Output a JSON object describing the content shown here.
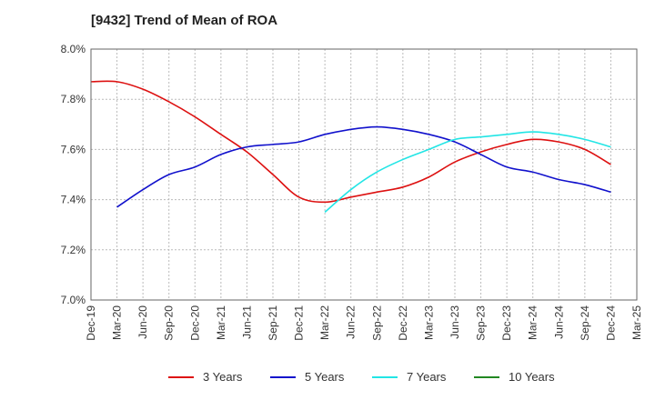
{
  "chart_data": {
    "type": "line",
    "title": "[9432]  Trend of Mean of ROA",
    "xlabel": "",
    "ylabel": "",
    "ylim": [
      7.0,
      8.0
    ],
    "yticks": [
      "7.0%",
      "7.2%",
      "7.4%",
      "7.6%",
      "7.8%",
      "8.0%"
    ],
    "yvalues": [
      7.0,
      7.2,
      7.4,
      7.6,
      7.8,
      8.0
    ],
    "x_labels": [
      "Dec-19",
      "Mar-20",
      "Jun-20",
      "Sep-20",
      "Dec-20",
      "Mar-21",
      "Jun-21",
      "Sep-21",
      "Dec-21",
      "Mar-22",
      "Jun-22",
      "Sep-22",
      "Dec-22",
      "Mar-23",
      "Jun-23",
      "Sep-23",
      "Dec-23",
      "Mar-24",
      "Jun-24",
      "Sep-24",
      "Dec-24",
      "Mar-25"
    ],
    "grid": true,
    "legend_position": "bottom",
    "series": [
      {
        "name": "3 Years",
        "color": "#dd1111",
        "values": [
          7.87,
          7.87,
          7.84,
          7.79,
          7.73,
          7.66,
          7.59,
          7.5,
          7.41,
          7.39,
          7.41,
          7.43,
          7.45,
          7.49,
          7.55,
          7.59,
          7.62,
          7.64,
          7.63,
          7.6,
          7.54,
          null
        ]
      },
      {
        "name": "5 Years",
        "color": "#1111cc",
        "values": [
          null,
          7.37,
          7.44,
          7.5,
          7.53,
          7.58,
          7.61,
          7.62,
          7.63,
          7.66,
          7.68,
          7.69,
          7.68,
          7.66,
          7.63,
          7.58,
          7.53,
          7.51,
          7.48,
          7.46,
          7.43,
          null
        ]
      },
      {
        "name": "7 Years",
        "color": "#22e5e5",
        "values": [
          null,
          null,
          null,
          null,
          null,
          null,
          null,
          null,
          null,
          7.35,
          7.44,
          7.51,
          7.56,
          7.6,
          7.64,
          7.65,
          7.66,
          7.67,
          7.66,
          7.64,
          7.61,
          null
        ]
      },
      {
        "name": "10 Years",
        "color": "#228822",
        "values": [
          null,
          null,
          null,
          null,
          null,
          null,
          null,
          null,
          null,
          null,
          null,
          null,
          null,
          null,
          null,
          null,
          null,
          null,
          null,
          null,
          null,
          null
        ]
      }
    ]
  }
}
